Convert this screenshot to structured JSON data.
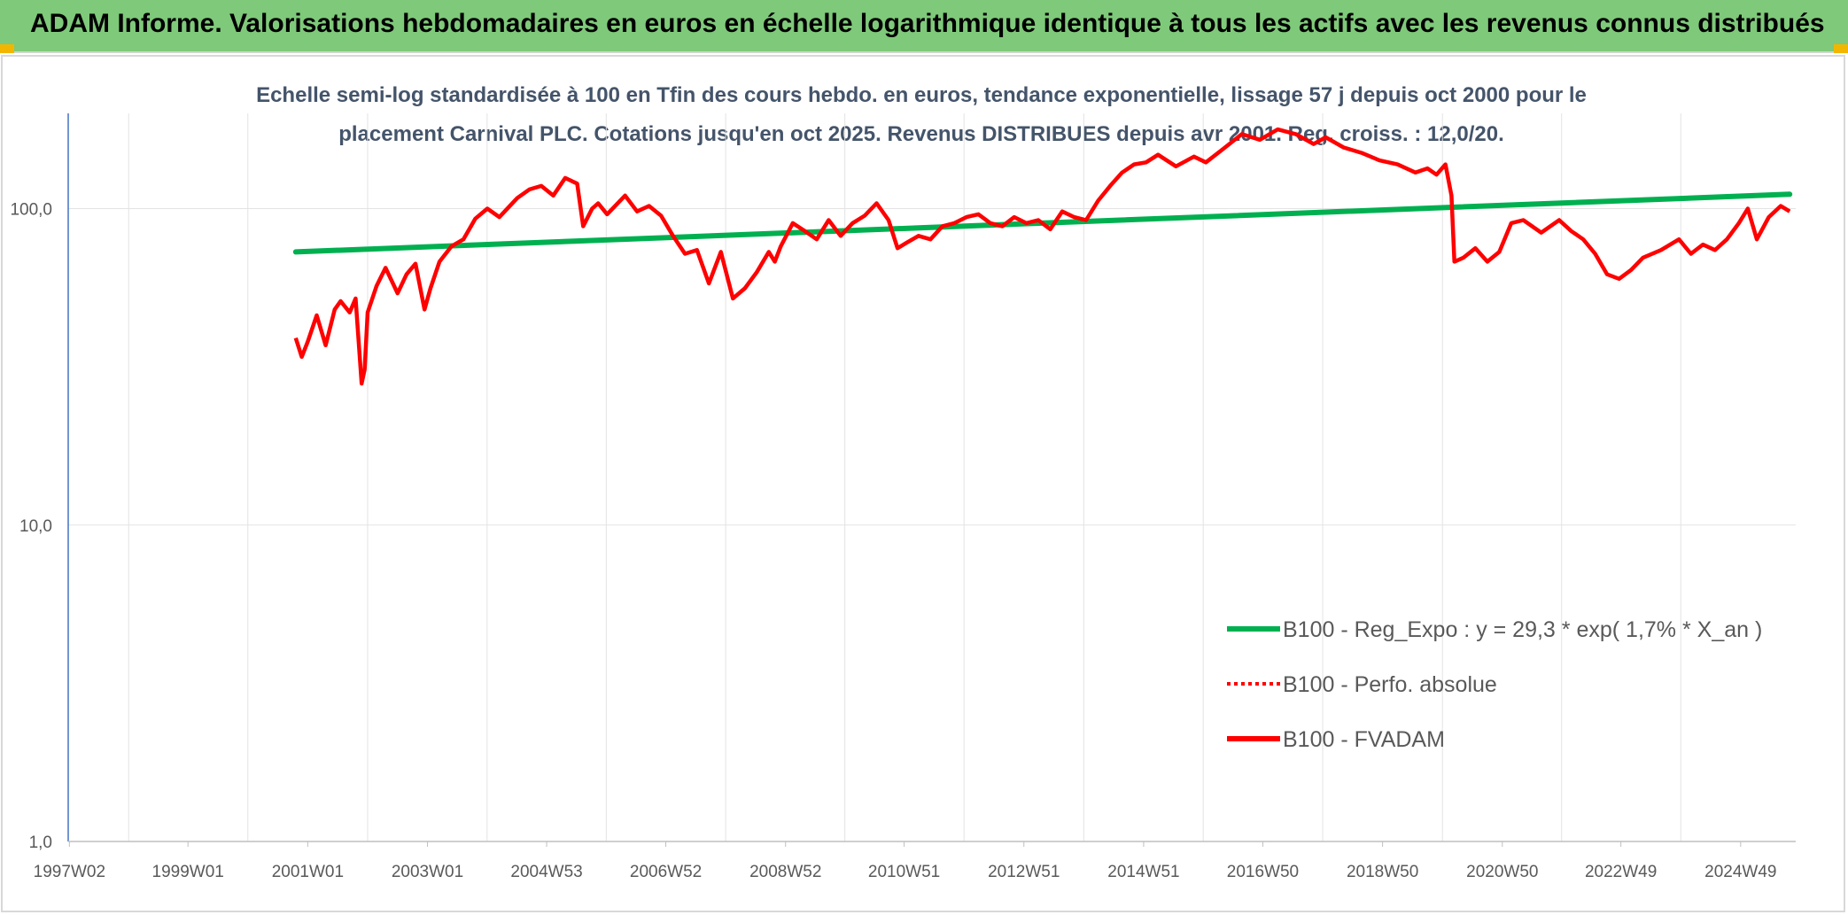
{
  "header": {
    "title": "ADAM Informe. Valorisations hebdomadaires en euros en échelle logarithmique identique à tous les actifs avec les revenus connus distribués"
  },
  "colors": {
    "header_bg": "#7fc97a",
    "trend": "#00b050",
    "perf": "#ff0000",
    "fvadam": "#ff0000",
    "title_text": "#44546a"
  },
  "chart_data": {
    "type": "line",
    "title_lines": [
      "Echelle semi-log standardisée à 100 en Tfin des cours hebdo. en euros, tendance exponentielle, lissage 57 j depuis oct 2000 pour le",
      "placement Carnival PLC. Cotations jusqu'en oct 2025. Revenus DISTRIBUES depuis avr 2001. Reg. croiss. : 12,0/20."
    ],
    "y_scale": "log",
    "ylim": [
      1,
      200
    ],
    "y_ticks": [
      {
        "value": 1,
        "label": "1,0"
      },
      {
        "value": 10,
        "label": "10,0"
      },
      {
        "value": 100,
        "label": "100,0"
      }
    ],
    "xlim": [
      1997.0,
      2025.85
    ],
    "x_ticks": [
      {
        "value": 1997.02,
        "label": "1997W02"
      },
      {
        "value": 1999.0,
        "label": "1999W01"
      },
      {
        "value": 2001.0,
        "label": "2001W01"
      },
      {
        "value": 2003.0,
        "label": "2003W01"
      },
      {
        "value": 2004.99,
        "label": "2004W53"
      },
      {
        "value": 2006.98,
        "label": "2006W52"
      },
      {
        "value": 2008.98,
        "label": "2008W52"
      },
      {
        "value": 2010.96,
        "label": "2010W51"
      },
      {
        "value": 2012.96,
        "label": "2012W51"
      },
      {
        "value": 2014.96,
        "label": "2014W51"
      },
      {
        "value": 2016.95,
        "label": "2016W50"
      },
      {
        "value": 2018.95,
        "label": "2018W50"
      },
      {
        "value": 2020.95,
        "label": "2020W50"
      },
      {
        "value": 2022.93,
        "label": "2022W49"
      },
      {
        "value": 2024.93,
        "label": "2024W49"
      }
    ],
    "grid": "vertical",
    "legend_position": "bottom-right",
    "series": [
      {
        "name": "B100 - Reg_Expo : y = 29,3 * exp( 1,7% *  X_an )",
        "style": "solid-thick",
        "x": [
          2000.8,
          2025.75
        ],
        "y": [
          73,
          111
        ]
      },
      {
        "name": "B100 - Perfo. absolue",
        "style": "dotted",
        "x": [],
        "y": []
      },
      {
        "name": "B100 - FVADAM",
        "style": "solid",
        "x": [
          2000.8,
          2000.9,
          2001.0,
          2001.15,
          2001.3,
          2001.45,
          2001.55,
          2001.7,
          2001.8,
          2001.9,
          2001.95,
          2002.0,
          2002.15,
          2002.3,
          2002.5,
          2002.65,
          2002.8,
          2002.95,
          2003.05,
          2003.2,
          2003.4,
          2003.6,
          2003.8,
          2004.0,
          2004.2,
          2004.5,
          2004.7,
          2004.9,
          2005.1,
          2005.3,
          2005.5,
          2005.6,
          2005.75,
          2005.85,
          2006.0,
          2006.3,
          2006.5,
          2006.7,
          2006.9,
          2007.1,
          2007.3,
          2007.5,
          2007.7,
          2007.9,
          2008.1,
          2008.3,
          2008.5,
          2008.7,
          2008.8,
          2008.9,
          2009.1,
          2009.3,
          2009.5,
          2009.7,
          2009.9,
          2010.1,
          2010.3,
          2010.5,
          2010.7,
          2010.85,
          2011.0,
          2011.2,
          2011.4,
          2011.6,
          2011.8,
          2012.0,
          2012.2,
          2012.4,
          2012.6,
          2012.8,
          2013.0,
          2013.2,
          2013.4,
          2013.6,
          2013.8,
          2014.0,
          2014.2,
          2014.4,
          2014.6,
          2014.8,
          2015.0,
          2015.2,
          2015.5,
          2015.8,
          2016.0,
          2016.3,
          2016.6,
          2016.9,
          2017.2,
          2017.5,
          2017.8,
          2018.0,
          2018.3,
          2018.6,
          2018.9,
          2019.2,
          2019.5,
          2019.7,
          2019.85,
          2020.0,
          2020.1,
          2020.15,
          2020.3,
          2020.5,
          2020.7,
          2020.9,
          2021.1,
          2021.3,
          2021.6,
          2021.9,
          2022.1,
          2022.3,
          2022.5,
          2022.7,
          2022.9,
          2023.1,
          2023.3,
          2023.6,
          2023.9,
          2024.1,
          2024.3,
          2024.5,
          2024.7,
          2024.9,
          2025.05,
          2025.2,
          2025.4,
          2025.6,
          2025.75
        ],
        "y": [
          39,
          34,
          38,
          46,
          37,
          48,
          51,
          47,
          52,
          28,
          31,
          47,
          57,
          65,
          54,
          62,
          67,
          48,
          56,
          68,
          76,
          80,
          93,
          100,
          94,
          108,
          115,
          118,
          110,
          125,
          120,
          88,
          100,
          104,
          96,
          110,
          98,
          102,
          95,
          82,
          72,
          74,
          58,
          73,
          52,
          56,
          63,
          73,
          68,
          76,
          90,
          85,
          80,
          92,
          82,
          90,
          95,
          104,
          92,
          75,
          78,
          82,
          80,
          88,
          90,
          94,
          96,
          90,
          88,
          94,
          90,
          92,
          86,
          98,
          94,
          92,
          106,
          118,
          130,
          138,
          140,
          148,
          136,
          146,
          140,
          155,
          172,
          165,
          178,
          172,
          160,
          168,
          156,
          150,
          142,
          138,
          130,
          134,
          128,
          138,
          110,
          68,
          70,
          75,
          68,
          73,
          90,
          92,
          84,
          92,
          85,
          80,
          72,
          62,
          60,
          64,
          70,
          74,
          80,
          72,
          77,
          74,
          80,
          90,
          100,
          80,
          94,
          102,
          98
        ]
      }
    ]
  }
}
